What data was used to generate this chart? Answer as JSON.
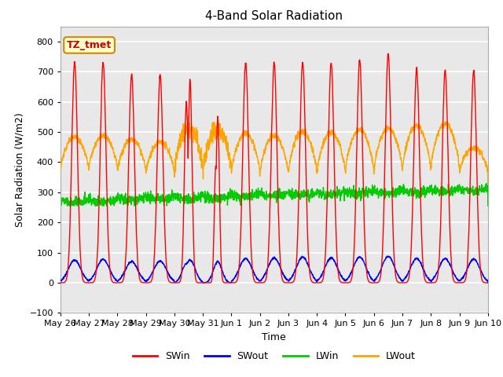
{
  "title": "4-Band Solar Radiation",
  "xlabel": "Time",
  "ylabel": "Solar Radiation (W/m2)",
  "annotation": "TZ_tmet",
  "ylim": [
    -100,
    850
  ],
  "n_days": 15,
  "xtick_labels": [
    "May 26",
    "May 27",
    "May 28",
    "May 29",
    "May 30",
    "May 31",
    "Jun 1",
    "Jun 2",
    "Jun 3",
    "Jun 4",
    "Jun 5",
    "Jun 6",
    "Jun 7",
    "Jun 8",
    "Jun 9",
    "Jun 10"
  ],
  "legend": [
    "SWin",
    "SWout",
    "LWin",
    "LWout"
  ],
  "colors": {
    "SWin": "#ff0000",
    "SWout": "#0000ff",
    "LWin": "#00cc00",
    "LWout": "#ffa500"
  },
  "background_color": "#ffffff",
  "plot_bg_color": "#e8e8e8",
  "grid_color": "#ffffff",
  "annotation_bg": "#ffffcc",
  "annotation_border": "#cc8800",
  "SWin_peaks": [
    730,
    730,
    690,
    690,
    705,
    550,
    730,
    730,
    730,
    730,
    740,
    760,
    710,
    705,
    705
  ],
  "SWout_peaks": [
    75,
    78,
    70,
    72,
    75,
    70,
    80,
    82,
    85,
    82,
    85,
    88,
    80,
    80,
    78
  ],
  "LWout_night": [
    370,
    375,
    368,
    362,
    370,
    368,
    360,
    358,
    362,
    360,
    362,
    368,
    370,
    375,
    365
  ],
  "LWout_day_peaks": [
    485,
    488,
    475,
    468,
    510,
    510,
    495,
    488,
    502,
    498,
    508,
    512,
    522,
    528,
    448
  ],
  "LWin_base": [
    280,
    285,
    275,
    272,
    278,
    276,
    272,
    270,
    275,
    273,
    275,
    280,
    285,
    288,
    278
  ],
  "LWin_day_dip": [
    -15,
    -18,
    -12,
    -12,
    -15,
    -14,
    -12,
    -12,
    -13,
    -12,
    -13,
    -14,
    -15,
    -15,
    -13
  ]
}
